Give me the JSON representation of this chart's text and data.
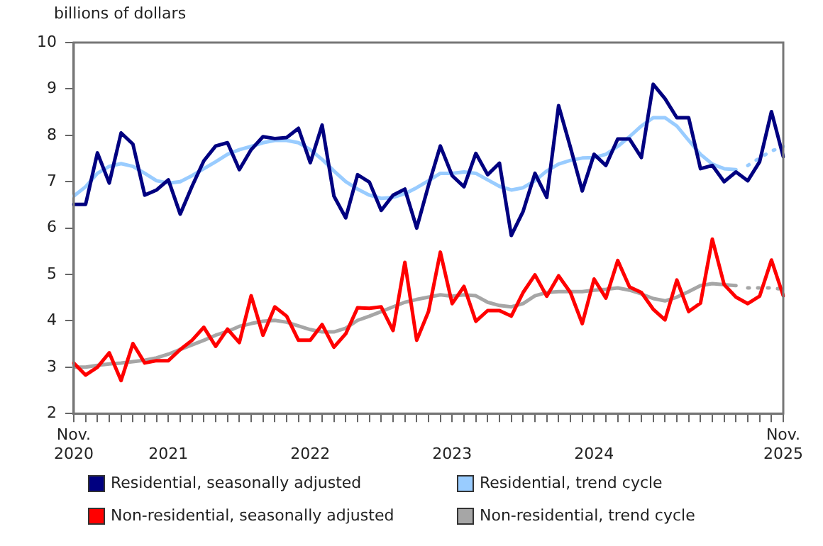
{
  "chart_data": {
    "type": "line",
    "ylabel": "billions of dollars",
    "categories": [
      "Nov. 2020",
      null,
      null,
      null,
      null,
      null,
      null,
      null,
      "2021",
      null,
      null,
      null,
      null,
      null,
      null,
      null,
      null,
      null,
      null,
      null,
      "2022",
      null,
      null,
      null,
      null,
      null,
      null,
      null,
      null,
      null,
      null,
      null,
      "2023",
      null,
      null,
      null,
      null,
      null,
      null,
      null,
      null,
      null,
      null,
      null,
      "2024",
      null,
      null,
      null,
      null,
      null,
      null,
      null,
      null,
      null,
      null,
      null,
      null,
      null,
      null,
      null,
      "Nov. 2025"
    ],
    "ylim": [
      2,
      10
    ],
    "yticks": [
      2,
      3,
      4,
      5,
      6,
      7,
      8,
      9,
      10
    ],
    "grid": false,
    "legend": "bottom",
    "marker": "none",
    "series": [
      {
        "name": "Residential, seasonally adjusted",
        "color": "#000080",
        "values": [
          6.51,
          6.51,
          7.62,
          6.97,
          8.05,
          7.81,
          6.71,
          6.82,
          7.04,
          6.3,
          6.9,
          7.45,
          7.77,
          7.84,
          7.26,
          7.69,
          7.97,
          7.93,
          7.95,
          8.15,
          7.41,
          8.22,
          6.69,
          6.22,
          7.15,
          6.99,
          6.38,
          6.71,
          6.84,
          6.0,
          6.92,
          7.77,
          7.13,
          6.89,
          7.61,
          7.15,
          7.4,
          5.84,
          6.36,
          7.18,
          6.66,
          8.64,
          7.74,
          6.8,
          7.59,
          7.35,
          7.92,
          7.92,
          7.52,
          9.1,
          8.79,
          8.38,
          8.38,
          7.28,
          7.35,
          7.0,
          7.21,
          7.02,
          7.43,
          8.51,
          7.54
        ]
      },
      {
        "name": "Residential, trend cycle",
        "color": "#99ccff",
        "values": [
          6.69,
          6.89,
          7.18,
          7.33,
          7.39,
          7.33,
          7.18,
          7.02,
          6.97,
          7.0,
          7.13,
          7.28,
          7.43,
          7.59,
          7.69,
          7.76,
          7.84,
          7.89,
          7.89,
          7.84,
          7.69,
          7.48,
          7.23,
          7.0,
          6.84,
          6.71,
          6.64,
          6.66,
          6.74,
          6.87,
          7.02,
          7.18,
          7.18,
          7.21,
          7.18,
          7.04,
          6.9,
          6.82,
          6.87,
          7.02,
          7.23,
          7.38,
          7.46,
          7.51,
          7.52,
          7.59,
          7.76,
          7.97,
          8.2,
          8.38,
          8.38,
          8.2,
          7.89,
          7.59,
          7.38,
          7.28,
          7.26,
          null,
          null,
          null,
          null
        ]
      },
      {
        "color": "#99ccff",
        "line_style": "dotted",
        "values": [
          null,
          null,
          null,
          null,
          null,
          null,
          null,
          null,
          null,
          null,
          null,
          null,
          null,
          null,
          null,
          null,
          null,
          null,
          null,
          null,
          null,
          null,
          null,
          null,
          null,
          null,
          null,
          null,
          null,
          null,
          null,
          null,
          null,
          null,
          null,
          null,
          null,
          null,
          null,
          null,
          null,
          null,
          null,
          null,
          null,
          null,
          null,
          null,
          null,
          null,
          null,
          null,
          null,
          null,
          null,
          null,
          null,
          7.35,
          7.51,
          7.66,
          7.76
        ]
      },
      {
        "name": "Non-residential, seasonally adjusted",
        "color": "#ff0000",
        "values": [
          3.09,
          2.83,
          3.0,
          3.31,
          2.71,
          3.51,
          3.09,
          3.14,
          3.14,
          3.38,
          3.58,
          3.86,
          3.45,
          3.82,
          3.53,
          4.54,
          3.69,
          4.3,
          4.1,
          3.58,
          3.58,
          3.92,
          3.43,
          3.72,
          4.28,
          4.27,
          4.3,
          3.79,
          5.26,
          3.58,
          4.2,
          5.48,
          4.37,
          4.74,
          3.99,
          4.22,
          4.22,
          4.1,
          4.61,
          4.99,
          4.53,
          4.97,
          4.61,
          3.94,
          4.9,
          4.49,
          5.3,
          4.73,
          4.61,
          4.25,
          4.02,
          4.88,
          4.2,
          4.38,
          5.76,
          4.78,
          4.51,
          4.37,
          4.53,
          5.31,
          4.54
        ]
      },
      {
        "name": "Non-residential, trend cycle",
        "color": "#a6a6a6",
        "values": [
          3.0,
          3.0,
          3.04,
          3.07,
          3.09,
          3.12,
          3.15,
          3.2,
          3.28,
          3.38,
          3.48,
          3.58,
          3.69,
          3.77,
          3.88,
          3.94,
          3.99,
          4.01,
          3.97,
          3.89,
          3.81,
          3.76,
          3.76,
          3.84,
          4.01,
          4.1,
          4.2,
          4.3,
          4.4,
          4.46,
          4.51,
          4.56,
          4.53,
          4.56,
          4.54,
          4.4,
          4.33,
          4.3,
          4.37,
          4.54,
          4.61,
          4.63,
          4.63,
          4.63,
          4.66,
          4.68,
          4.71,
          4.66,
          4.58,
          4.48,
          4.43,
          4.51,
          4.63,
          4.76,
          4.8,
          4.78,
          4.76,
          null,
          null,
          null,
          null
        ]
      },
      {
        "color": "#a6a6a6",
        "line_style": "dotted",
        "values": [
          null,
          null,
          null,
          null,
          null,
          null,
          null,
          null,
          null,
          null,
          null,
          null,
          null,
          null,
          null,
          null,
          null,
          null,
          null,
          null,
          null,
          null,
          null,
          null,
          null,
          null,
          null,
          null,
          null,
          null,
          null,
          null,
          null,
          null,
          null,
          null,
          null,
          null,
          null,
          null,
          null,
          null,
          null,
          null,
          null,
          null,
          null,
          null,
          null,
          null,
          null,
          null,
          null,
          null,
          null,
          null,
          null,
          4.71,
          4.71,
          4.71,
          4.68
        ]
      }
    ]
  }
}
